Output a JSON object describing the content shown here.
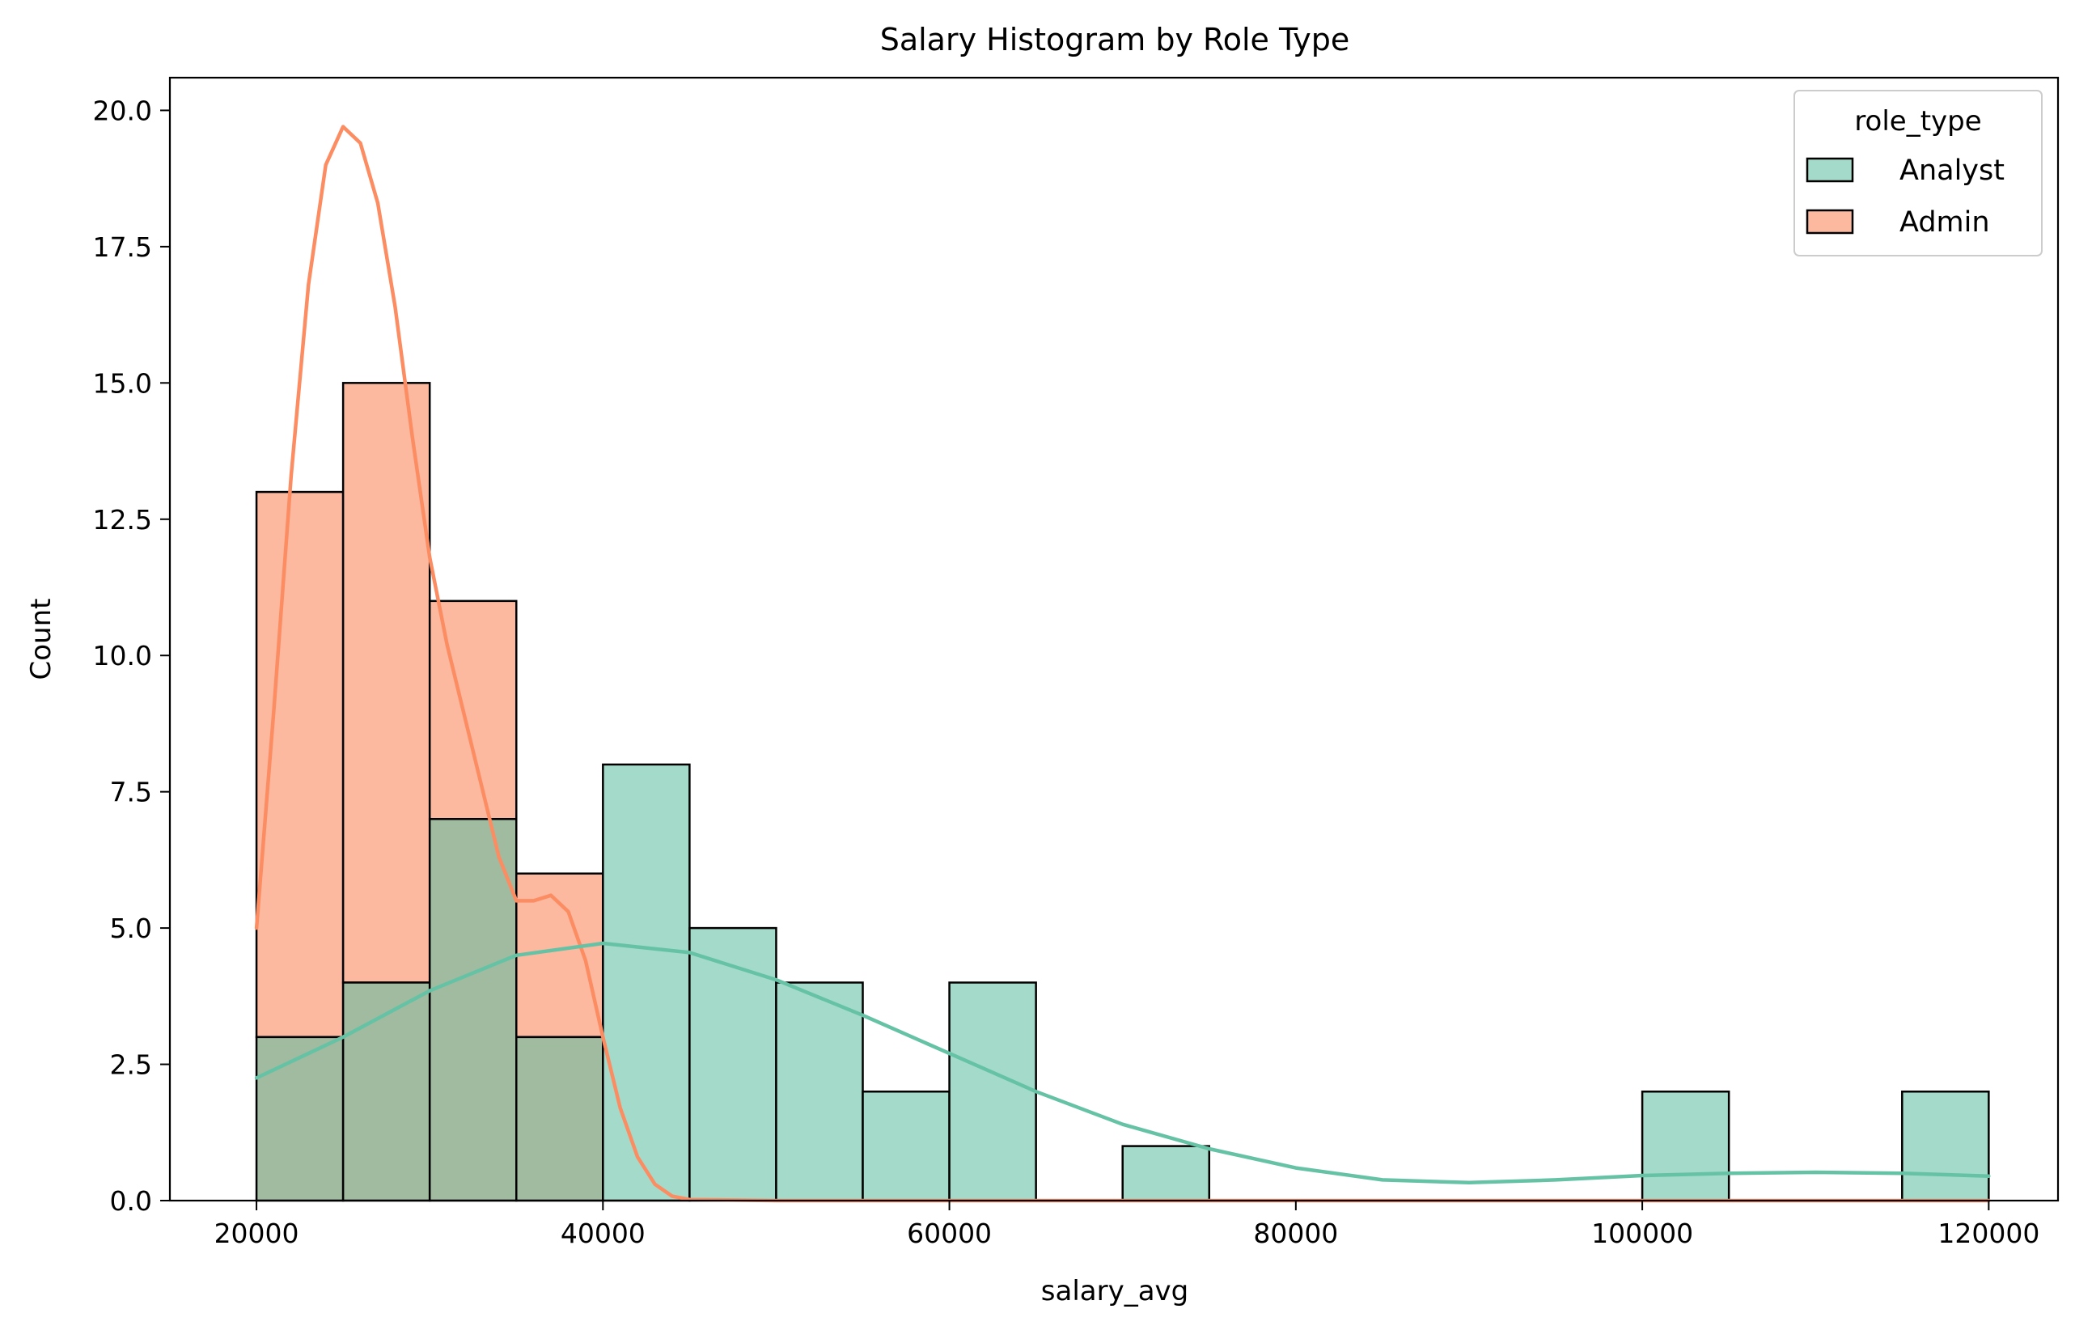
{
  "chart_data": {
    "type": "bar",
    "title": "Salary Histogram by Role Type",
    "xlabel": "salary_avg",
    "ylabel": "Count",
    "xlim": [
      15000,
      124000
    ],
    "ylim": [
      0,
      20.6
    ],
    "xticks": [
      20000,
      40000,
      60000,
      80000,
      100000,
      120000
    ],
    "xtick_labels": [
      "20000",
      "40000",
      "60000",
      "80000",
      "100000",
      "120000"
    ],
    "yticks": [
      0,
      2.5,
      5,
      7.5,
      10,
      12.5,
      15,
      17.5,
      20
    ],
    "ytick_labels": [
      "0.0",
      "2.5",
      "5.0",
      "7.5",
      "10.0",
      "12.5",
      "15.0",
      "17.5",
      "20.0"
    ],
    "grid": false,
    "legend_position": "top-right",
    "legend_title": "role_type",
    "bin_edges": [
      20000,
      25000,
      30000,
      35000,
      40000,
      45000,
      50000,
      55000,
      60000,
      65000,
      70000,
      75000,
      80000,
      85000,
      90000,
      95000,
      100000,
      105000,
      110000,
      115000,
      120000
    ],
    "series": [
      {
        "name": "Analyst",
        "fill": "#a4dac9",
        "line": "#66c2a5",
        "counts": [
          3,
          4,
          7,
          3,
          8,
          5,
          4,
          2,
          4,
          0,
          1,
          0,
          0,
          0,
          0,
          0,
          2,
          0,
          0,
          2
        ],
        "kde": [
          [
            20000,
            2.25
          ],
          [
            25000,
            3.0
          ],
          [
            30000,
            3.85
          ],
          [
            35000,
            4.5
          ],
          [
            40000,
            4.72
          ],
          [
            45000,
            4.55
          ],
          [
            50000,
            4.05
          ],
          [
            55000,
            3.4
          ],
          [
            60000,
            2.7
          ],
          [
            65000,
            2.0
          ],
          [
            70000,
            1.4
          ],
          [
            75000,
            0.95
          ],
          [
            80000,
            0.6
          ],
          [
            85000,
            0.38
          ],
          [
            90000,
            0.33
          ],
          [
            95000,
            0.38
          ],
          [
            100000,
            0.46
          ],
          [
            105000,
            0.5
          ],
          [
            110000,
            0.52
          ],
          [
            115000,
            0.5
          ],
          [
            120000,
            0.45
          ]
        ]
      },
      {
        "name": "Admin",
        "fill": "#fcb9a0",
        "line": "#fc8d62",
        "counts": [
          10,
          11,
          4,
          3,
          0,
          0,
          0,
          0,
          0,
          0,
          0,
          0,
          0,
          0,
          0,
          0,
          0,
          0,
          0,
          0
        ],
        "kde": [
          [
            20000,
            5.0
          ],
          [
            21000,
            9.0
          ],
          [
            22000,
            13.3
          ],
          [
            23000,
            16.8
          ],
          [
            24000,
            19.0
          ],
          [
            25000,
            19.7
          ],
          [
            26000,
            19.4
          ],
          [
            27000,
            18.3
          ],
          [
            28000,
            16.4
          ],
          [
            29000,
            14.0
          ],
          [
            30000,
            11.8
          ],
          [
            31000,
            10.2
          ],
          [
            32000,
            8.9
          ],
          [
            33000,
            7.6
          ],
          [
            34000,
            6.3
          ],
          [
            35000,
            5.5
          ],
          [
            36000,
            5.5
          ],
          [
            37000,
            5.6
          ],
          [
            38000,
            5.3
          ],
          [
            39000,
            4.4
          ],
          [
            40000,
            3.0
          ],
          [
            41000,
            1.7
          ],
          [
            42000,
            0.8
          ],
          [
            43000,
            0.3
          ],
          [
            44000,
            0.08
          ],
          [
            45000,
            0.02
          ],
          [
            50000,
            0.0
          ],
          [
            60000,
            0.0
          ],
          [
            80000,
            0.0
          ],
          [
            100000,
            0.0
          ],
          [
            120000,
            0.0
          ]
        ]
      }
    ]
  }
}
